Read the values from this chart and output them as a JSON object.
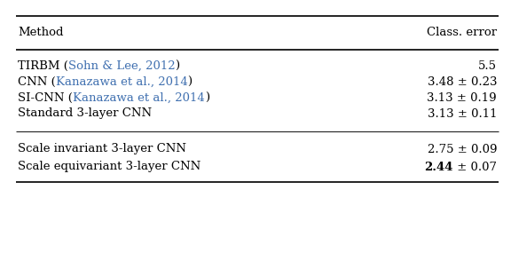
{
  "col_headers": [
    "Method",
    "Class. error"
  ],
  "rows": [
    {
      "method_parts": [
        {
          "text": "TIRBM (",
          "color": "#000000",
          "bold": false
        },
        {
          "text": "Sohn & Lee, 2012",
          "color": "#4070b0",
          "bold": false
        },
        {
          "text": ")",
          "color": "#000000",
          "bold": false
        }
      ],
      "error": "5.5",
      "error_parts": null,
      "group": 1
    },
    {
      "method_parts": [
        {
          "text": "CNN (",
          "color": "#000000",
          "bold": false
        },
        {
          "text": "Kanazawa et al., 2014",
          "color": "#4070b0",
          "bold": false
        },
        {
          "text": ")",
          "color": "#000000",
          "bold": false
        }
      ],
      "error": "3.48 ± 0.23",
      "error_parts": null,
      "group": 1
    },
    {
      "method_parts": [
        {
          "text": "SI-CNN (",
          "color": "#000000",
          "bold": false
        },
        {
          "text": "Kanazawa et al., 2014",
          "color": "#4070b0",
          "bold": false
        },
        {
          "text": ")",
          "color": "#000000",
          "bold": false
        }
      ],
      "error": "3.13 ± 0.19",
      "error_parts": null,
      "group": 1
    },
    {
      "method_parts": [
        {
          "text": "Standard 3-layer CNN",
          "color": "#000000",
          "bold": false
        }
      ],
      "error": "3.13 ± 0.11",
      "error_parts": null,
      "group": 1
    },
    {
      "method_parts": [
        {
          "text": "Scale invariant 3-layer CNN",
          "color": "#000000",
          "bold": false
        }
      ],
      "error": "2.75 ± 0.09",
      "error_parts": null,
      "group": 2
    },
    {
      "method_parts": [
        {
          "text": "Scale equivariant 3-layer CNN",
          "color": "#000000",
          "bold": false
        }
      ],
      "error": null,
      "error_parts": [
        {
          "text": "2.44",
          "bold": true
        },
        {
          "text": " ± 0.07",
          "bold": false
        }
      ],
      "group": 2
    }
  ],
  "bg_color": "#ffffff",
  "text_color": "#000000",
  "font_size": 9.5,
  "header_font_size": 9.5,
  "fig_width": 5.76,
  "fig_height": 3.12,
  "dpi": 100
}
